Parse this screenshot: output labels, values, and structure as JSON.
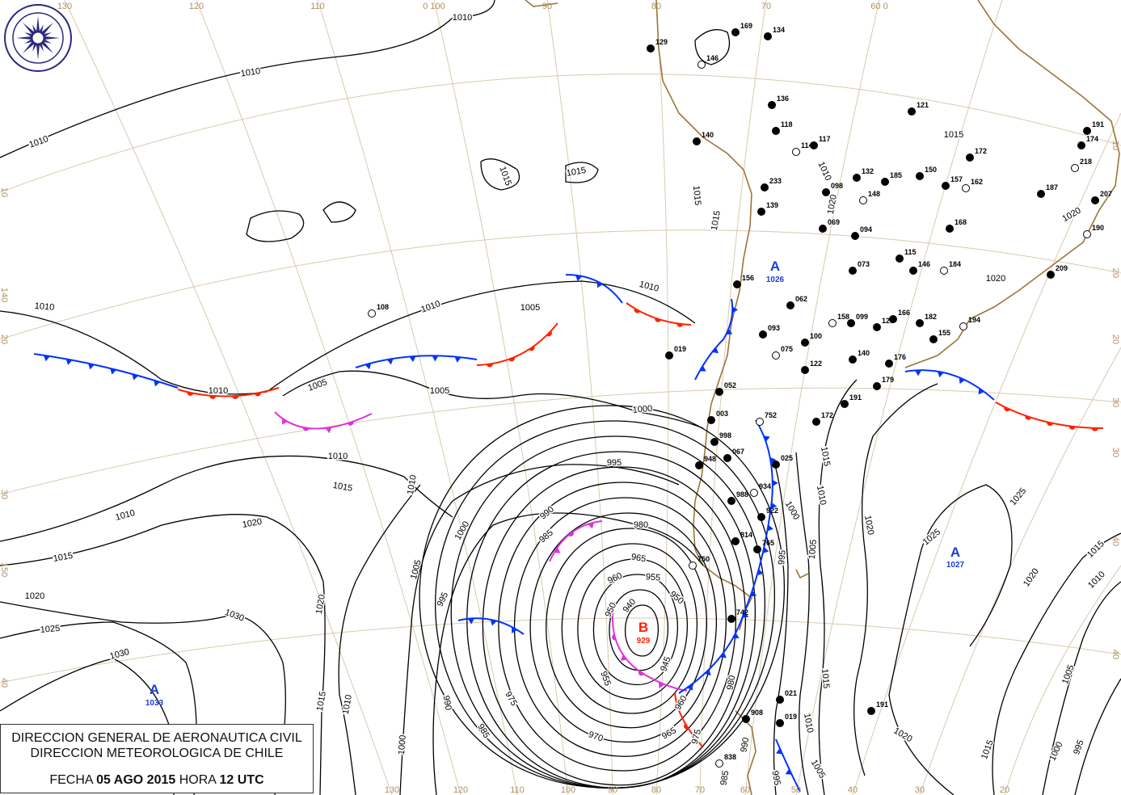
{
  "title_box": {
    "line1": "DIRECCION GENERAL DE AERONAUTICA CIVIL",
    "line2": "DIRECCION METEOROLOGICA DE CHILE",
    "fecha_label": "FECHA",
    "date": "05 AGO 2015",
    "hora_label": "HORA",
    "time": "12 UTC"
  },
  "logo": {
    "text_top": "DIRECCION METEOROLOGICA",
    "text_bottom": "CHILE"
  },
  "colors": {
    "isobar": "#000000",
    "graticule": "#d9c9ad",
    "coast": "#9c7538",
    "cold_front": "#0033ff",
    "warm_front": "#ff2200",
    "occluded_front": "#dd33dd",
    "high": "#1a3fd6",
    "low": "#ff2200"
  },
  "pressure_centers": [
    {
      "type": "A",
      "value": "1033",
      "color": "#1a3fd6"
    },
    {
      "type": "A",
      "value": "1027",
      "color": "#1a3fd6"
    },
    {
      "type": "A",
      "value": "1026",
      "color": "#1a3fd6"
    },
    {
      "type": "B",
      "value": "929",
      "color": "#ff2200"
    }
  ],
  "grid_labels": {
    "top": [
      "130",
      "120",
      "110",
      "0 100",
      "90",
      "80",
      "70",
      "60 0"
    ],
    "bottom": [
      "130",
      "120",
      "110",
      "100",
      "90",
      "80",
      "70",
      "60",
      "50",
      "40",
      "30",
      "20"
    ],
    "left": [
      "10",
      "20",
      "30",
      "40",
      "140",
      "150"
    ],
    "right": [
      "10",
      "20",
      "30",
      "40",
      "20",
      "30",
      "40"
    ]
  },
  "isobar_labels": [
    "1010",
    "1010",
    "1010",
    "1010",
    "1010",
    "1010",
    "1010",
    "1005",
    "1005",
    "1005",
    "1000",
    "995",
    "1010",
    "1015",
    "1010",
    "1010",
    "1020",
    "1015",
    "1020",
    "1025",
    "1030",
    "1030",
    "1020",
    "1015",
    "1010",
    "1000",
    "1005",
    "1000",
    "995",
    "990",
    "985",
    "980",
    "975",
    "970",
    "965",
    "960",
    "955",
    "950",
    "945",
    "940",
    "950",
    "955",
    "985",
    "990",
    "960",
    "965",
    "975",
    "980",
    "985",
    "990",
    "995",
    "1000",
    "1005",
    "1010",
    "1015",
    "1020",
    "1015",
    "1010",
    "1005",
    "995",
    "1020",
    "1025",
    "1025",
    "1020",
    "1015",
    "1010",
    "1005",
    "1000",
    "995",
    "1015",
    "1015",
    "1015",
    "1015",
    "1015",
    "1015",
    "1020",
    "1020",
    "1020",
    "1010"
  ],
  "stations": [
    "108",
    "019",
    "169",
    "134",
    "129",
    "146",
    "136",
    "140",
    "118",
    "117",
    "114",
    "132",
    "185",
    "150",
    "157",
    "162",
    "172",
    "121",
    "191",
    "174",
    "218",
    "207",
    "209",
    "187",
    "168",
    "190",
    "069",
    "094",
    "115",
    "146",
    "184",
    "062",
    "099",
    "093",
    "100",
    "075",
    "122",
    "140",
    "176",
    "182",
    "194",
    "166",
    "125",
    "052",
    "003",
    "752",
    "998",
    "067",
    "948",
    "025",
    "934",
    "988",
    "922",
    "814",
    "765",
    "750",
    "742",
    "021",
    "908",
    "019",
    "838",
    "191",
    "179",
    "191",
    "172",
    "158",
    "155",
    "073",
    "139",
    "156",
    "148",
    "098",
    "233"
  ]
}
